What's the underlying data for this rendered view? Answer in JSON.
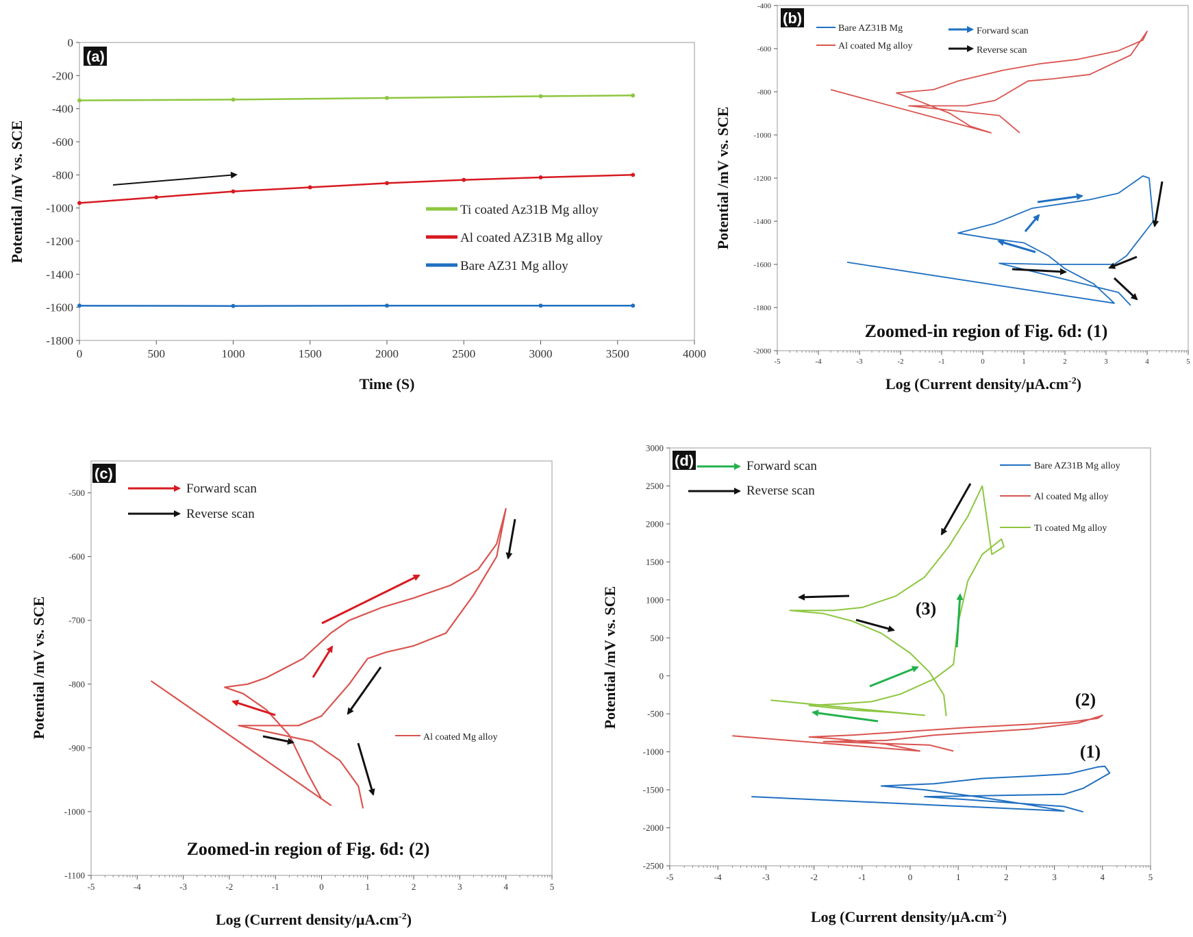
{
  "chart_data": [
    {
      "id": "a",
      "type": "line",
      "panel_label": "(a)",
      "xlabel": "Time (S)",
      "ylabel": "Potential /mV vs. SCE",
      "xlim": [
        0,
        4000
      ],
      "ylim": [
        -1800,
        0
      ],
      "x_ticks": [
        "0",
        "500",
        "1000",
        "1500",
        "2000",
        "2500",
        "3000",
        "3500",
        "4000"
      ],
      "y_ticks": [
        "0",
        "-200",
        "-400",
        "-600",
        "-800",
        "-1000",
        "-1200",
        "-1400",
        "-1600",
        "-1800"
      ],
      "series": [
        {
          "name": "Ti coated Az31B Mg alloy",
          "color": "#8dc63f",
          "x": [
            0,
            1000,
            2000,
            3000,
            3600
          ],
          "values": [
            -350,
            -345,
            -335,
            -325,
            -320
          ]
        },
        {
          "name": "Al coated AZ31B Mg alloy",
          "color": "#d71920",
          "x": [
            0,
            500,
            1000,
            1500,
            2000,
            2500,
            3000,
            3600
          ],
          "values": [
            -970,
            -935,
            -900,
            -875,
            -850,
            -830,
            -815,
            -800
          ]
        },
        {
          "name": "Bare AZ31 Mg alloy",
          "color": "#1f6fc1",
          "x": [
            0,
            1000,
            2000,
            3000,
            3600
          ],
          "values": [
            -1590,
            -1592,
            -1590,
            -1590,
            -1590
          ]
        }
      ],
      "arrow": "black arrow indicating increasing potential"
    },
    {
      "id": "b",
      "type": "line",
      "panel_label": "(b)",
      "xlabel_main": "Log (Current density/µA.cm",
      "xlabel_sup": "-2",
      "xlabel_end": ")",
      "ylabel": "Potential /mV vs. SCE",
      "xlim": [
        -5,
        5
      ],
      "ylim": [
        -2000,
        -400
      ],
      "x_ticks": [
        "-5",
        "-4",
        "-3",
        "-2",
        "-1",
        "0",
        "1",
        "2",
        "3",
        "4",
        "5"
      ],
      "y_ticks": [
        "-400",
        "-600",
        "-800",
        "-1000",
        "-1200",
        "-1400",
        "-1600",
        "-1800",
        "-2000"
      ],
      "legend": [
        "Bare AZ31B Mg",
        "Al coated Mg alloy"
      ],
      "scan_legend": [
        "Forward scan",
        "Reverse scan"
      ],
      "note": "Zoomed-in region of Fig. 6d: (1)",
      "series": [
        {
          "name": "Bare AZ31B Mg",
          "color": "#1f6fc1",
          "x": [
            -3.3,
            3.2,
            2.7,
            2.0,
            1.6,
            1.0,
            0.2,
            -0.6,
            0.3,
            1.2,
            1.9,
            2.6,
            3.3,
            3.9,
            4.05,
            4.15,
            3.5,
            3.2,
            2.4,
            1.6,
            0.4,
            3.3,
            3.6
          ],
          "values": [
            -1590,
            -1780,
            -1690,
            -1620,
            -1560,
            -1500,
            -1480,
            -1455,
            -1410,
            -1340,
            -1320,
            -1300,
            -1270,
            -1190,
            -1200,
            -1400,
            -1560,
            -1600,
            -1600,
            -1600,
            -1595,
            -1730,
            -1790
          ]
        },
        {
          "name": "Al coated Mg alloy",
          "color": "#d9534f",
          "x": [
            -3.7,
            0.2,
            -0.3,
            -0.8,
            -1.6,
            -2.1,
            -1.2,
            -0.6,
            0.5,
            1.4,
            2.3,
            3.3,
            3.9,
            4.0,
            3.6,
            2.6,
            1.7,
            1.1,
            0.3,
            -0.4,
            -1.0,
            -1.8,
            0.4,
            0.9
          ],
          "values": [
            -790,
            -990,
            -960,
            -900,
            -840,
            -805,
            -790,
            -750,
            -700,
            -670,
            -650,
            -610,
            -560,
            -520,
            -630,
            -720,
            -740,
            -750,
            -840,
            -865,
            -865,
            -865,
            -910,
            -990
          ]
        }
      ]
    },
    {
      "id": "c",
      "type": "line",
      "panel_label": "(c)",
      "xlabel_main": "Log (Current density/µA.cm",
      "xlabel_sup": "-2",
      "xlabel_end": ")",
      "ylabel": "Potential /mV vs. SCE",
      "xlim": [
        -5,
        5
      ],
      "ylim": [
        -1100,
        -450
      ],
      "x_ticks": [
        "-5",
        "-4",
        "-3",
        "-2",
        "-1",
        "0",
        "1",
        "2",
        "3",
        "4",
        "5"
      ],
      "y_ticks": [
        "-500",
        "-600",
        "-700",
        "-800",
        "-900",
        "-1000",
        "-1100"
      ],
      "legend": [
        "Al coated Mg alloy"
      ],
      "scan_legend": [
        "Forward scan",
        "Reverse scan"
      ],
      "note": "Zoomed-in region of Fig. 6d: (2)",
      "series": [
        {
          "name": "Al coated Mg alloy",
          "color": "#d9534f",
          "x": [
            -3.7,
            0.2,
            0.0,
            -0.3,
            -0.7,
            -1.2,
            -1.7,
            -2.1,
            -1.6,
            -1.2,
            -0.8,
            -0.4,
            -0.1,
            0.2,
            0.6,
            1.3,
            2.0,
            2.8,
            3.4,
            3.8,
            4.0,
            3.8,
            3.3,
            2.7,
            2.0,
            1.4,
            1.0,
            0.6,
            0.0,
            -0.5,
            -1.0,
            -1.8,
            -0.2,
            0.4,
            0.8,
            0.9
          ],
          "values": [
            -795,
            -990,
            -980,
            -940,
            -880,
            -840,
            -815,
            -805,
            -800,
            -790,
            -775,
            -760,
            -740,
            -720,
            -700,
            -680,
            -665,
            -645,
            -620,
            -580,
            -525,
            -600,
            -660,
            -720,
            -740,
            -750,
            -760,
            -800,
            -850,
            -865,
            -865,
            -865,
            -890,
            -920,
            -960,
            -995
          ]
        }
      ]
    },
    {
      "id": "d",
      "type": "line",
      "panel_label": "(d)",
      "xlabel_main": "Log (Current density/µA.cm",
      "xlabel_sup": "-2",
      "xlabel_end": ")",
      "ylabel": "Potential /mV vs. SCE",
      "xlim": [
        -5,
        5
      ],
      "ylim": [
        -2500,
        3000
      ],
      "x_ticks": [
        "-5",
        "-4",
        "-3",
        "-2",
        "-1",
        "0",
        "1",
        "2",
        "3",
        "4",
        "5"
      ],
      "y_ticks": [
        "3000",
        "2500",
        "2000",
        "1500",
        "1000",
        "500",
        "0",
        "-500",
        "-1000",
        "-1500",
        "-2000",
        "-2500"
      ],
      "legend": [
        "Bare AZ31B Mg alloy",
        "Al coated Mg alloy",
        "Ti coated Mg alloy"
      ],
      "scan_legend": [
        "Forward scan",
        "Reverse scan"
      ],
      "region_labels": [
        "(1)",
        "(2)",
        "(3)"
      ],
      "series": [
        {
          "name": "Bare AZ31B Mg alloy",
          "color": "#1f6fc1",
          "x": [
            -3.3,
            3.2,
            2.5,
            1.5,
            0.3,
            -0.6,
            0.5,
            1.5,
            2.5,
            3.3,
            3.9,
            4.05,
            4.15,
            3.6,
            3.2,
            2.2,
            1.3,
            0.3,
            3.2,
            3.6
          ],
          "values": [
            -1590,
            -1780,
            -1700,
            -1600,
            -1500,
            -1450,
            -1420,
            -1350,
            -1320,
            -1290,
            -1200,
            -1190,
            -1280,
            -1480,
            -1560,
            -1570,
            -1580,
            -1590,
            -1720,
            -1790
          ]
        },
        {
          "name": "Al coated Mg alloy",
          "color": "#d9534f",
          "x": [
            -3.7,
            0.2,
            -0.5,
            -1.5,
            -2.1,
            -1.2,
            0.0,
            1.2,
            2.4,
            3.3,
            3.9,
            4.0,
            3.5,
            2.5,
            1.5,
            0.5,
            -0.5,
            -1.8,
            0.4,
            0.9
          ],
          "values": [
            -790,
            -990,
            -900,
            -830,
            -805,
            -780,
            -730,
            -680,
            -640,
            -610,
            -560,
            -520,
            -620,
            -700,
            -740,
            -780,
            -850,
            -865,
            -910,
            -990
          ]
        },
        {
          "name": "Ti coated Mg alloy",
          "color": "#8dc63f",
          "x": [
            -2.9,
            0.3,
            -0.4,
            -1.2,
            -2.1,
            -1.5,
            -0.8,
            -0.2,
            0.5,
            0.9,
            1.0,
            1.2,
            1.5,
            1.9,
            1.95,
            1.7,
            1.5,
            1.2,
            0.8,
            0.3,
            -0.3,
            -1.0,
            -1.6,
            -2.5,
            -1.8,
            -1.2,
            -0.6,
            0.0,
            0.4,
            0.7,
            0.75
          ],
          "values": [
            -320,
            -520,
            -480,
            -450,
            -390,
            -370,
            -340,
            -240,
            -40,
            150,
            700,
            1250,
            1600,
            1800,
            1700,
            1600,
            2500,
            2100,
            1700,
            1300,
            1050,
            900,
            860,
            860,
            820,
            720,
            560,
            300,
            50,
            -250,
            -530
          ]
        }
      ]
    }
  ]
}
